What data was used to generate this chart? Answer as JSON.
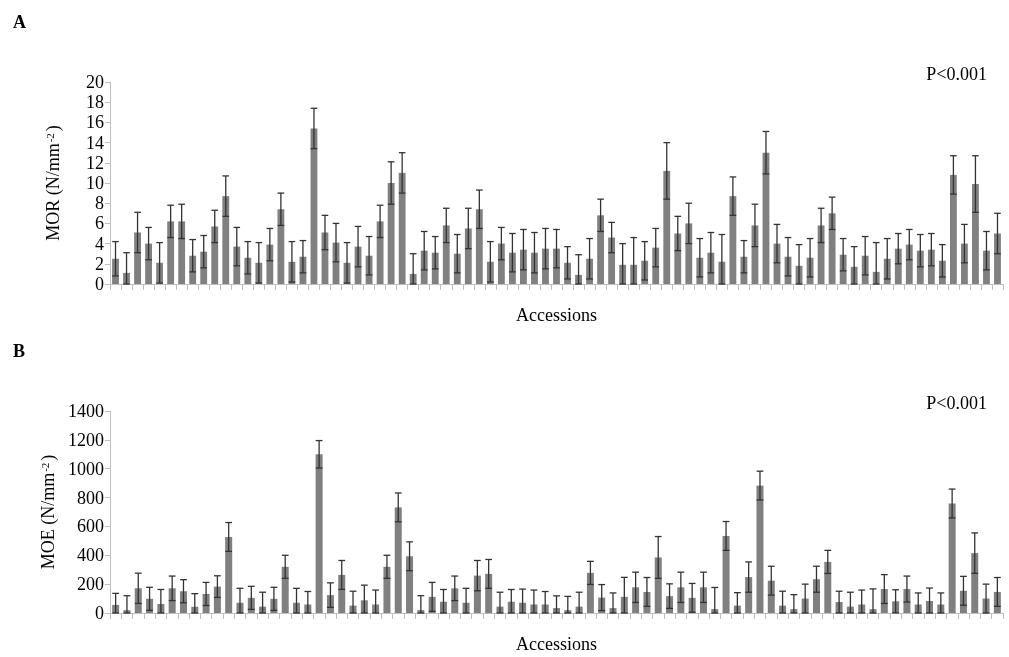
{
  "chart_data": [
    {
      "type": "bar",
      "title": "A",
      "ylabel": "MOR (N/mm$^{-2}$)",
      "xlabel": "Accessions",
      "annotations": [
        "P<0.001"
      ],
      "color": "#808080",
      "grid": false,
      "ylim": [
        0,
        20
      ],
      "yticks": [
        0,
        2,
        4,
        6,
        8,
        10,
        12,
        14,
        16,
        18,
        20
      ],
      "categories": [
        null,
        null,
        null,
        null,
        null,
        null,
        null,
        null,
        null,
        null,
        null,
        null,
        null,
        null,
        null,
        null,
        null,
        null,
        null,
        null,
        null,
        null,
        null,
        null,
        null,
        null,
        null,
        null,
        null,
        null,
        null,
        null,
        null,
        null,
        null,
        null,
        null,
        null,
        null,
        null,
        null,
        null,
        null,
        null,
        null,
        null,
        null,
        null,
        null,
        null,
        null,
        null,
        null,
        null,
        null,
        null,
        null,
        null,
        null,
        null,
        null,
        null,
        null,
        null,
        null,
        null,
        null,
        null,
        null,
        null,
        null,
        null,
        null,
        null,
        null,
        null,
        null,
        null,
        null,
        null,
        null
      ],
      "values": [
        2.5,
        1.1,
        5.1,
        4.0,
        2.1,
        6.2,
        6.2,
        2.8,
        3.2,
        5.7,
        8.7,
        3.7,
        2.6,
        2.1,
        3.9,
        7.4,
        2.2,
        2.7,
        15.4,
        5.1,
        4.1,
        2.1,
        3.7,
        2.8,
        6.2,
        10.0,
        11.0,
        1.0,
        3.3,
        3.1,
        5.8,
        3.0,
        5.5,
        7.4,
        2.2,
        4.0,
        3.1,
        3.4,
        3.1,
        3.5,
        3.5,
        2.1,
        0.9,
        2.5,
        6.8,
        4.6,
        1.9,
        1.9,
        2.3,
        3.6,
        11.2,
        5.0,
        6.0,
        2.6,
        3.1,
        2.2,
        8.7,
        2.7,
        5.8,
        13.0,
        4.0,
        2.7,
        1.8,
        2.6,
        5.8,
        7.0,
        2.9,
        1.7,
        2.8,
        1.2,
        2.5,
        3.5,
        3.9,
        3.3,
        3.4,
        2.3,
        10.8,
        4.0,
        9.9,
        3.3,
        5.0
      ],
      "errors": [
        1.7,
        [
          0,
          3.1
        ],
        2.0,
        1.6,
        2.0,
        1.6,
        1.7,
        1.6,
        1.6,
        1.6,
        2.0,
        1.9,
        1.6,
        2.0,
        1.6,
        1.6,
        2.0,
        1.6,
        2.0,
        1.7,
        1.9,
        2.0,
        2.0,
        1.9,
        1.6,
        2.1,
        2.0,
        [
          0,
          3.0
        ],
        1.9,
        1.6,
        1.7,
        1.9,
        2.0,
        1.9,
        2.0,
        1.6,
        1.9,
        2.0,
        2.0,
        2.0,
        1.9,
        1.6,
        [
          0,
          2.9
        ],
        2.0,
        1.6,
        1.5,
        [
          0,
          4.0
        ],
        [
          0,
          4.6
        ],
        1.9,
        1.9,
        2.8,
        1.7,
        2.0,
        1.9,
        2.0,
        [
          0,
          4.9
        ],
        1.9,
        1.6,
        2.1,
        2.1,
        1.9,
        1.9,
        [
          0,
          3.9
        ],
        1.9,
        1.7,
        1.6,
        1.6,
        [
          0,
          3.7
        ],
        1.9,
        [
          0,
          4.1
        ],
        2.0,
        1.5,
        1.5,
        1.6,
        1.6,
        1.6,
        1.9,
        1.9,
        2.8,
        1.9,
        2.0
      ]
    },
    {
      "type": "bar",
      "title": "B",
      "ylabel": "MOE (N/mm$^{-2}$)",
      "xlabel": "Accessions",
      "annotations": [
        "P<0.001"
      ],
      "color": "#808080",
      "grid": false,
      "ylim": [
        0,
        1400
      ],
      "yticks": [
        0,
        200,
        400,
        600,
        800,
        1000,
        1200,
        1400
      ],
      "categories": [
        null,
        null,
        null,
        null,
        null,
        null,
        null,
        null,
        null,
        null,
        null,
        null,
        null,
        null,
        null,
        null,
        null,
        null,
        null,
        null,
        null,
        null,
        null,
        null,
        null,
        null,
        null,
        null,
        null,
        null,
        null,
        null,
        null,
        null,
        null,
        null,
        null,
        null,
        null,
        null,
        null,
        null,
        null,
        null,
        null,
        null,
        null,
        null,
        null,
        null,
        null,
        null,
        null,
        null,
        null,
        null,
        null,
        null,
        null,
        null,
        null,
        null,
        null,
        null,
        null,
        null,
        null,
        null,
        null,
        null,
        null,
        null,
        null,
        null,
        null,
        null,
        null,
        null,
        null
      ],
      "values": [
        56,
        20,
        171,
        98,
        63,
        171,
        151,
        44,
        132,
        183,
        527,
        71,
        105,
        44,
        98,
        320,
        71,
        59,
        1100,
        124,
        264,
        51,
        88,
        59,
        320,
        732,
        393,
        20,
        112,
        78,
        171,
        71,
        259,
        271,
        44,
        78,
        71,
        59,
        59,
        34,
        20,
        44,
        278,
        107,
        34,
        112,
        178,
        146,
        385,
        117,
        178,
        105,
        178,
        27,
        534,
        51,
        249,
        883,
        224,
        51,
        27,
        100,
        234,
        354,
        76,
        44,
        59,
        27,
        166,
        81,
        166,
        59,
        83,
        59,
        759,
        154,
        415,
        100,
        146
      ],
      "errors": [
        [
          0,
          136
        ],
        [
          0,
          120
        ],
        105,
        80,
        [
          0,
          163
        ],
        85,
        80,
        [
          0,
          134
        ],
        80,
        75,
        100,
        [
          0,
          171
        ],
        80,
        [
          0,
          144
        ],
        80,
        80,
        [
          0,
          171
        ],
        [
          0,
          149
        ],
        95,
        85,
        100,
        [
          0,
          151
        ],
        [
          0,
          193
        ],
        [
          0,
          159
        ],
        80,
        100,
        100,
        [
          0,
          120
        ],
        100,
        [
          0,
          163
        ],
        85,
        [
          0,
          171
        ],
        105,
        100,
        [
          0,
          144
        ],
        [
          0,
          163
        ],
        [
          0,
          166
        ],
        [
          0,
          159
        ],
        [
          0,
          149
        ],
        [
          0,
          119
        ],
        [
          0,
          115
        ],
        [
          0,
          144
        ],
        80,
        90,
        [
          0,
          139
        ],
        [
          0,
          247
        ],
        105,
        100,
        145,
        85,
        105,
        100,
        105,
        [
          0,
          177
        ],
        100,
        [
          0,
          141
        ],
        105,
        100,
        100,
        [
          0,
          151
        ],
        [
          0,
          127
        ],
        100,
        90,
        80,
        [
          0,
          151
        ],
        [
          0,
          144
        ],
        [
          0,
          159
        ],
        [
          0,
          167
        ],
        100,
        80,
        90,
        [
          0,
          139
        ],
        [
          0,
          173
        ],
        [
          0,
          139
        ],
        100,
        100,
        140,
        100,
        100
      ]
    }
  ]
}
